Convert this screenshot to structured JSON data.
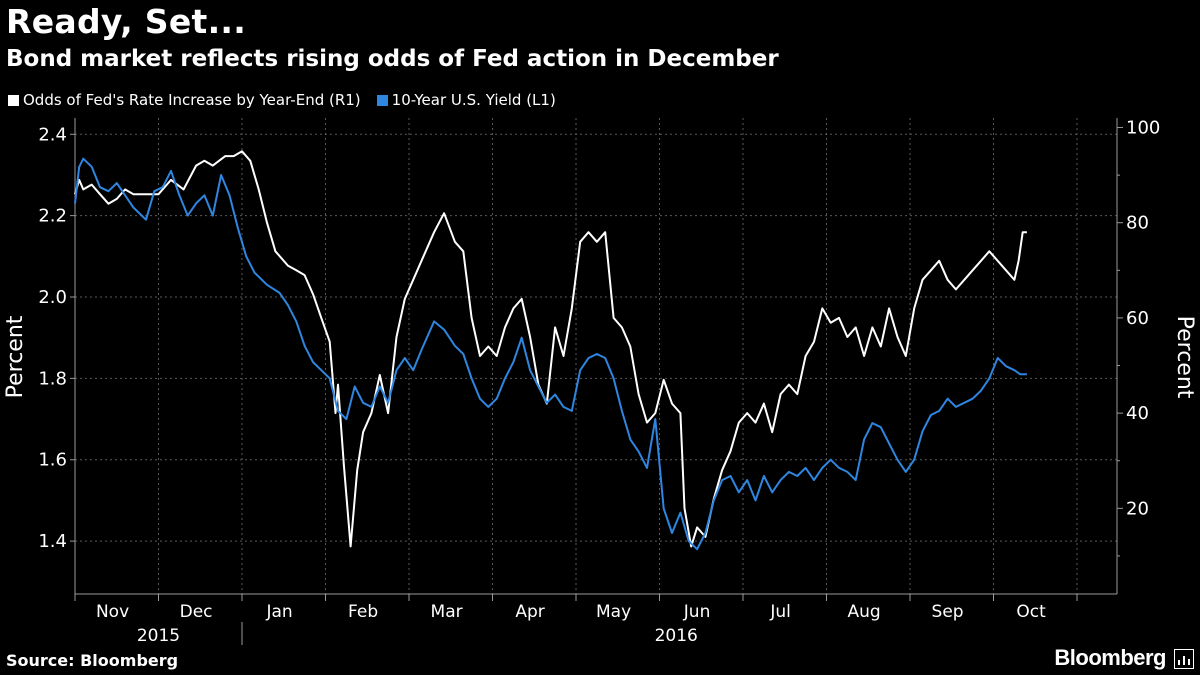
{
  "header": {
    "title": "Ready, Set...",
    "subtitle": "Bond market reflects rising odds of Fed action in December"
  },
  "legend": [
    {
      "label": "Odds of Fed's Rate Increase by Year-End (R1)",
      "color": "#ffffff"
    },
    {
      "label": "10-Year U.S. Yield (L1)",
      "color": "#2f86e0"
    }
  ],
  "footer": {
    "source": "Source: Bloomberg",
    "brand": "Bloomberg"
  },
  "chart_data": {
    "type": "line",
    "title": "Ready, Set...",
    "subtitle": "Bond market reflects rising odds of Fed action in December",
    "x_unit": "months (0 = start of Nov 2015)",
    "x_tick_labels": [
      "Nov",
      "Dec",
      "Jan",
      "Feb",
      "Mar",
      "Apr",
      "May",
      "Jun",
      "Jul",
      "Aug",
      "Sep",
      "Oct"
    ],
    "year_labels": [
      "2015",
      "2016"
    ],
    "left_axis": {
      "label": "Percent",
      "ticks": [
        1.4,
        1.6,
        1.8,
        2.0,
        2.2,
        2.4
      ],
      "range": [
        1.27,
        2.44
      ]
    },
    "right_axis": {
      "label": "Percent",
      "ticks": [
        20,
        40,
        60,
        80,
        100
      ],
      "range": [
        2,
        102
      ]
    },
    "grid": true,
    "legend_position": "top-left",
    "series": [
      {
        "name": "Odds of Fed's Rate Increase by Year-End (R1)",
        "axis": "right",
        "color": "#ffffff",
        "x": [
          0.0,
          0.05,
          0.1,
          0.2,
          0.3,
          0.4,
          0.5,
          0.6,
          0.7,
          0.85,
          1.0,
          1.15,
          1.3,
          1.45,
          1.55,
          1.65,
          1.8,
          1.9,
          2.0,
          2.1,
          2.2,
          2.3,
          2.4,
          2.55,
          2.65,
          2.75,
          2.85,
          2.95,
          3.05,
          3.12,
          3.15,
          3.22,
          3.3,
          3.38,
          3.45,
          3.55,
          3.65,
          3.75,
          3.85,
          3.95,
          4.05,
          4.15,
          4.3,
          4.42,
          4.55,
          4.65,
          4.75,
          4.85,
          4.95,
          5.05,
          5.15,
          5.25,
          5.35,
          5.45,
          5.55,
          5.65,
          5.75,
          5.85,
          5.95,
          6.05,
          6.15,
          6.25,
          6.35,
          6.45,
          6.55,
          6.65,
          6.75,
          6.85,
          6.95,
          7.05,
          7.15,
          7.25,
          7.3,
          7.38,
          7.45,
          7.55,
          7.65,
          7.75,
          7.85,
          7.95,
          8.05,
          8.15,
          8.25,
          8.35,
          8.45,
          8.55,
          8.65,
          8.75,
          8.85,
          8.95,
          9.05,
          9.15,
          9.25,
          9.35,
          9.45,
          9.55,
          9.65,
          9.75,
          9.85,
          9.95,
          10.05,
          10.15,
          10.25,
          10.35,
          10.45,
          10.55,
          10.65,
          10.75,
          10.85,
          10.95,
          11.05,
          11.15,
          11.25,
          11.3,
          11.35,
          11.4
        ],
        "values": [
          86,
          89,
          87,
          88,
          86,
          84,
          85,
          87,
          86,
          86,
          86,
          89,
          87,
          92,
          93,
          92,
          94,
          94,
          95,
          93,
          87,
          80,
          74,
          71,
          70,
          69,
          65,
          60,
          55,
          40,
          46,
          29,
          12,
          28,
          36,
          40,
          48,
          40,
          56,
          64,
          68,
          72,
          78,
          82,
          76,
          74,
          60,
          52,
          54,
          52,
          58,
          62,
          64,
          56,
          46,
          42,
          58,
          52,
          62,
          76,
          78,
          76,
          78,
          60,
          58,
          54,
          44,
          38,
          40,
          47,
          42,
          40,
          20,
          12,
          16,
          14,
          22,
          28,
          32,
          38,
          40,
          38,
          42,
          36,
          44,
          46,
          44,
          52,
          55,
          62,
          59,
          60,
          56,
          58,
          52,
          58,
          54,
          62,
          56,
          52,
          62,
          68,
          70,
          72,
          68,
          66,
          68,
          70,
          72,
          74,
          72,
          70,
          68,
          72,
          78,
          78
        ]
      },
      {
        "name": "10-Year U.S. Yield (L1)",
        "axis": "left",
        "color": "#2f86e0",
        "x": [
          0.0,
          0.05,
          0.1,
          0.2,
          0.3,
          0.4,
          0.5,
          0.6,
          0.7,
          0.85,
          0.95,
          1.05,
          1.15,
          1.25,
          1.35,
          1.45,
          1.55,
          1.65,
          1.75,
          1.85,
          1.95,
          2.05,
          2.15,
          2.3,
          2.45,
          2.55,
          2.65,
          2.75,
          2.85,
          2.95,
          3.05,
          3.15,
          3.25,
          3.35,
          3.45,
          3.55,
          3.65,
          3.75,
          3.85,
          3.95,
          4.05,
          4.15,
          4.3,
          4.42,
          4.55,
          4.65,
          4.75,
          4.85,
          4.95,
          5.05,
          5.15,
          5.25,
          5.35,
          5.45,
          5.55,
          5.65,
          5.75,
          5.85,
          5.95,
          6.05,
          6.15,
          6.25,
          6.35,
          6.45,
          6.55,
          6.65,
          6.75,
          6.85,
          6.95,
          7.05,
          7.15,
          7.25,
          7.35,
          7.45,
          7.55,
          7.65,
          7.75,
          7.85,
          7.95,
          8.05,
          8.15,
          8.25,
          8.35,
          8.45,
          8.55,
          8.65,
          8.75,
          8.85,
          8.95,
          9.05,
          9.15,
          9.25,
          9.35,
          9.45,
          9.55,
          9.65,
          9.75,
          9.85,
          9.95,
          10.05,
          10.15,
          10.25,
          10.35,
          10.45,
          10.55,
          10.65,
          10.75,
          10.85,
          10.95,
          11.05,
          11.15,
          11.25,
          11.32,
          11.4
        ],
        "values": [
          2.23,
          2.32,
          2.34,
          2.32,
          2.27,
          2.26,
          2.28,
          2.25,
          2.22,
          2.19,
          2.26,
          2.27,
          2.31,
          2.25,
          2.2,
          2.23,
          2.25,
          2.2,
          2.3,
          2.25,
          2.17,
          2.1,
          2.06,
          2.03,
          2.01,
          1.98,
          1.94,
          1.88,
          1.84,
          1.82,
          1.8,
          1.72,
          1.7,
          1.78,
          1.74,
          1.73,
          1.78,
          1.74,
          1.82,
          1.85,
          1.82,
          1.87,
          1.94,
          1.92,
          1.88,
          1.86,
          1.8,
          1.75,
          1.73,
          1.75,
          1.8,
          1.84,
          1.9,
          1.82,
          1.78,
          1.74,
          1.76,
          1.73,
          1.72,
          1.82,
          1.85,
          1.86,
          1.85,
          1.8,
          1.72,
          1.65,
          1.62,
          1.58,
          1.7,
          1.48,
          1.42,
          1.47,
          1.4,
          1.38,
          1.42,
          1.5,
          1.55,
          1.56,
          1.52,
          1.55,
          1.5,
          1.56,
          1.52,
          1.55,
          1.57,
          1.56,
          1.58,
          1.55,
          1.58,
          1.6,
          1.58,
          1.57,
          1.55,
          1.65,
          1.69,
          1.68,
          1.64,
          1.6,
          1.57,
          1.6,
          1.67,
          1.71,
          1.72,
          1.75,
          1.73,
          1.74,
          1.75,
          1.77,
          1.8,
          1.85,
          1.83,
          1.82,
          1.81,
          1.81
        ]
      }
    ]
  }
}
